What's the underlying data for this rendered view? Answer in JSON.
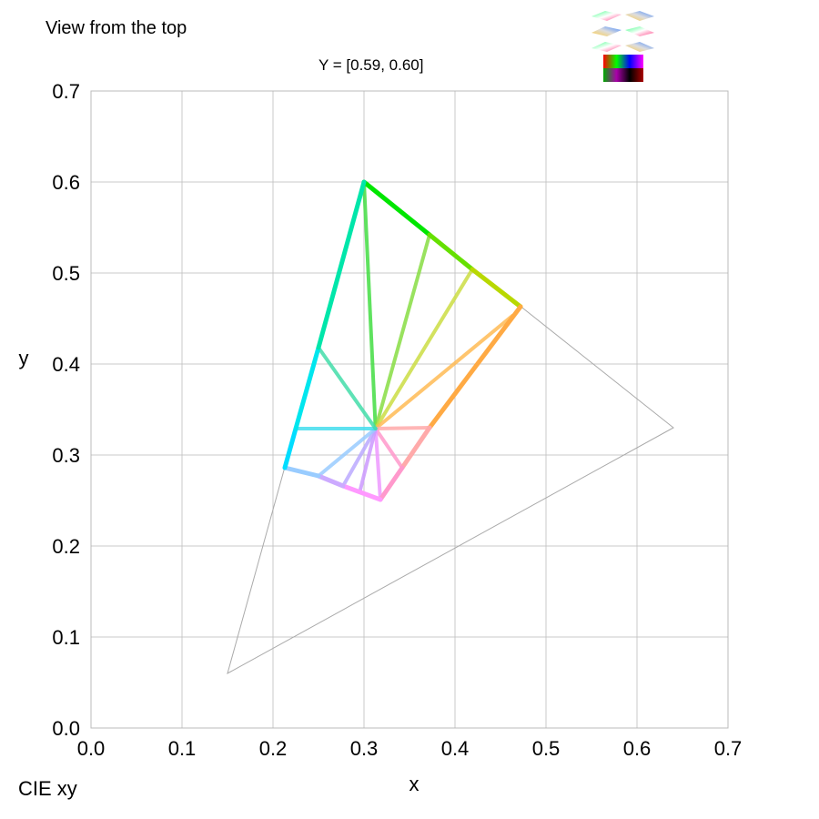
{
  "header": {
    "view_title": "View from the top",
    "subtitle": "Y = [0.59, 0.60]",
    "corner_label": "CIE xy"
  },
  "chart_data": {
    "type": "line",
    "xlabel": "x",
    "ylabel": "y",
    "xlim": [
      0,
      0.7
    ],
    "ylim": [
      0,
      0.7
    ],
    "x_ticks": [
      "0.0",
      "0.1",
      "0.2",
      "0.3",
      "0.4",
      "0.5",
      "0.6",
      "0.7"
    ],
    "y_ticks": [
      "0.0",
      "0.1",
      "0.2",
      "0.3",
      "0.4",
      "0.5",
      "0.6",
      "0.7"
    ],
    "grid": true,
    "gamut_triangle": {
      "color": "#aaaaaa",
      "points": [
        [
          0.64,
          0.33
        ],
        [
          0.3,
          0.6
        ],
        [
          0.15,
          0.06
        ]
      ]
    },
    "white_point": [
      0.3127,
      0.329
    ],
    "slice_boundary": {
      "points": [
        {
          "x": 0.3,
          "y": 0.6,
          "color": "#00e600"
        },
        {
          "x": 0.372,
          "y": 0.542,
          "color": "#66e000"
        },
        {
          "x": 0.419,
          "y": 0.504,
          "color": "#b8d800"
        },
        {
          "x": 0.472,
          "y": 0.463,
          "color": "#f2c400"
        },
        {
          "x": 0.472,
          "y": 0.463,
          "color": "#ffaa44"
        },
        {
          "x": 0.372,
          "y": 0.33,
          "color": "#ffaaaa"
        },
        {
          "x": 0.342,
          "y": 0.286,
          "color": "#ff99cc"
        },
        {
          "x": 0.318,
          "y": 0.251,
          "color": "#ff99ff"
        },
        {
          "x": 0.277,
          "y": 0.266,
          "color": "#ccaaff"
        },
        {
          "x": 0.25,
          "y": 0.277,
          "color": "#99ccff"
        },
        {
          "x": 0.213,
          "y": 0.286,
          "color": "#00ddff"
        },
        {
          "x": 0.225,
          "y": 0.329,
          "color": "#00e6ee"
        },
        {
          "x": 0.25,
          "y": 0.418,
          "color": "#00e6aa"
        },
        {
          "x": 0.3,
          "y": 0.6,
          "color": "#00e600"
        }
      ]
    },
    "spokes": [
      {
        "x": 0.3,
        "y": 0.6,
        "color": "#44dd44"
      },
      {
        "x": 0.372,
        "y": 0.542,
        "color": "#88dd44"
      },
      {
        "x": 0.419,
        "y": 0.504,
        "color": "#ccdd44"
      },
      {
        "x": 0.463,
        "y": 0.453,
        "color": "#ffbb55"
      },
      {
        "x": 0.372,
        "y": 0.33,
        "color": "#ffaaaa"
      },
      {
        "x": 0.342,
        "y": 0.286,
        "color": "#ff99cc"
      },
      {
        "x": 0.318,
        "y": 0.251,
        "color": "#ee99ff"
      },
      {
        "x": 0.296,
        "y": 0.262,
        "color": "#cc99ff"
      },
      {
        "x": 0.277,
        "y": 0.266,
        "color": "#bbaaff"
      },
      {
        "x": 0.25,
        "y": 0.277,
        "color": "#99ccff"
      },
      {
        "x": 0.225,
        "y": 0.329,
        "color": "#44ddee"
      },
      {
        "x": 0.25,
        "y": 0.418,
        "color": "#44ddaa"
      }
    ]
  },
  "thumbnails": {
    "icon": "color-slices-thumbnail-icon",
    "colors": [
      "#ff4444",
      "#44ff44",
      "#4444ff",
      "#ffff44",
      "#ff44ff",
      "#44ffff",
      "#000000",
      "#ffffff"
    ]
  }
}
